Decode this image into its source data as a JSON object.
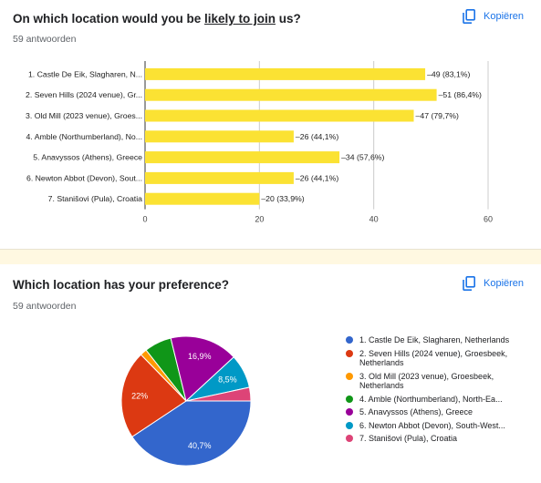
{
  "q1": {
    "title_prefix": "On which location would you be ",
    "title_underlined": "likely to join",
    "title_suffix": " us?",
    "count": "59 antwoorden",
    "copy_label": "Kopiëren"
  },
  "q2": {
    "title": "Which location has your preference?",
    "count": "59 antwoorden",
    "copy_label": "Kopiëren"
  },
  "chart_data": [
    {
      "type": "bar",
      "orientation": "horizontal",
      "categories": [
        "1. Castle De Eik, Slagharen, N...",
        "2. Seven Hills (2024 venue), Gr...",
        "3. Old Mill (2023 venue), Groes...",
        "4. Amble (Northumberland), No...",
        "5. Anavyssos (Athens), Greece",
        "6. Newton Abbot (Devon), Sout...",
        "7. Stanišovi (Pula), Croatia"
      ],
      "values": [
        49,
        51,
        47,
        26,
        34,
        26,
        20
      ],
      "data_labels": [
        "49 (83,1%)",
        "51 (86,4%)",
        "47 (79,7%)",
        "26 (44,1%)",
        "34 (57,6%)",
        "26 (44,1%)",
        "20 (33,9%)"
      ],
      "xlim": [
        0,
        60
      ],
      "xticks": [
        "0",
        "20",
        "40",
        "60"
      ],
      "grid": true,
      "color": "#fbe233"
    },
    {
      "type": "pie",
      "labels": [
        "1. Castle De Eik, Slagharen, Netherlands",
        "2. Seven Hills (2024 venue), Groesbeek, Netherlands",
        "3. Old Mill (2023 venue), Groesbeek, Netherlands",
        "4. Amble (Northumberland), North-Ea...",
        "5. Anavyssos (Athens), Greece",
        "6. Newton Abbot (Devon), South-West...",
        "7. Stanišovi (Pula), Croatia"
      ],
      "values": [
        24,
        13,
        1,
        4,
        10,
        5,
        2
      ],
      "slice_labels": [
        "40,7%",
        "22%",
        "",
        "",
        "16,9%",
        "8,5%",
        ""
      ],
      "colors": [
        "#3366cc",
        "#dc3912",
        "#ff9900",
        "#109618",
        "#990099",
        "#0099c6",
        "#dd4477"
      ],
      "legend_position": "right"
    }
  ]
}
